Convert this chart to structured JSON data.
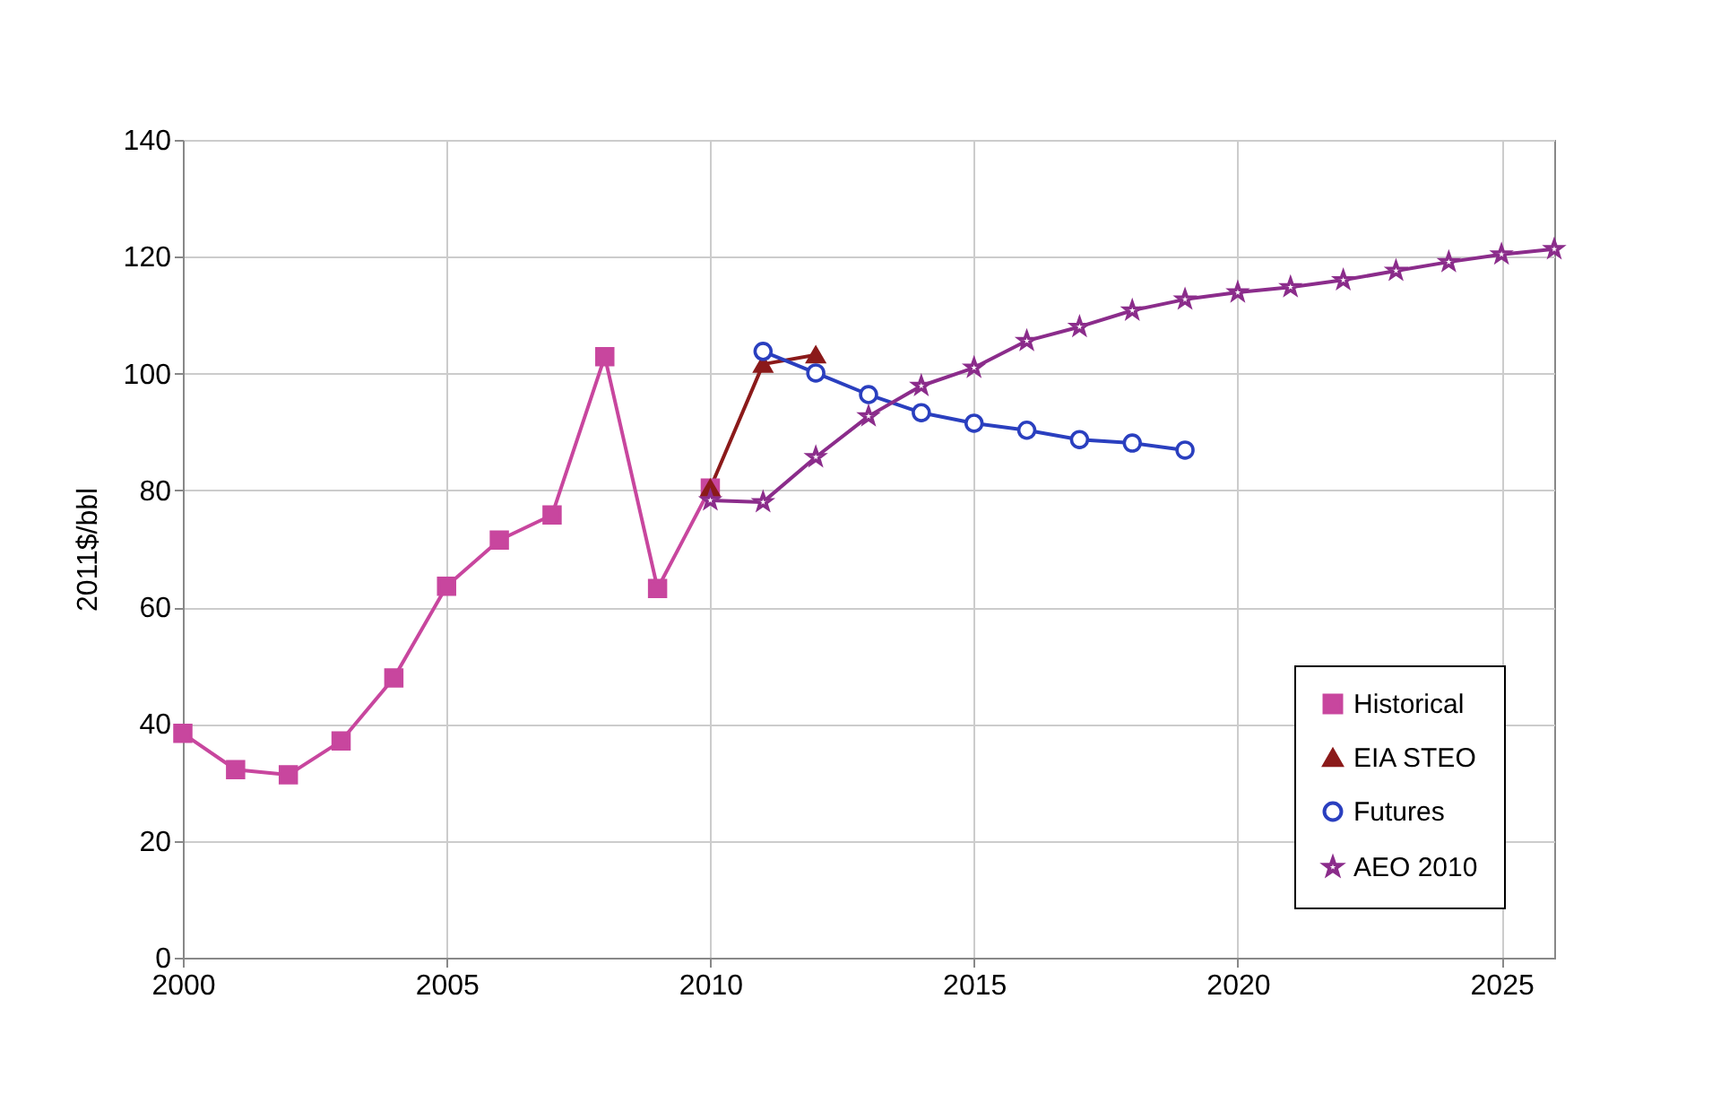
{
  "chart_data": {
    "type": "line",
    "ylabel": "2011$/bbl",
    "xlim": [
      2000,
      2026
    ],
    "xticks": [
      2000,
      2005,
      2010,
      2015,
      2020,
      2025
    ],
    "ylim": [
      0,
      140
    ],
    "yticks": [
      0,
      20,
      40,
      60,
      80,
      100,
      120,
      140
    ],
    "grid": true,
    "legend": "bottom right",
    "series": [
      {
        "name": "Historical",
        "color": "#c8469e",
        "marker": "square",
        "x": [
          2000,
          2001,
          2002,
          2003,
          2004,
          2005,
          2006,
          2007,
          2008,
          2009,
          2010
        ],
        "values": [
          38.4,
          32.2,
          31.3,
          37.1,
          47.9,
          63.6,
          71.5,
          75.8,
          102.9,
          63.2,
          80.4
        ]
      },
      {
        "name": "EIA STEO",
        "color": "#8b1a1a",
        "marker": "triangle",
        "x": [
          2010,
          2011,
          2012
        ],
        "values": [
          80.4,
          101.6,
          103.2
        ]
      },
      {
        "name": "Futures",
        "color": "#2a3fbf",
        "marker": "circle",
        "x": [
          2011,
          2012,
          2013,
          2014,
          2015,
          2016,
          2017,
          2018,
          2019
        ],
        "values": [
          103.8,
          100.1,
          96.4,
          93.3,
          91.5,
          90.3,
          88.7,
          88.1,
          86.9
        ]
      },
      {
        "name": "AEO 2010",
        "color": "#8b2c8b",
        "marker": "star",
        "x": [
          2010,
          2011,
          2012,
          2013,
          2014,
          2015,
          2016,
          2017,
          2018,
          2019,
          2020,
          2021,
          2022,
          2023,
          2024,
          2025,
          2026
        ],
        "values": [
          78.3,
          78.0,
          85.7,
          92.7,
          97.9,
          101.0,
          105.6,
          108.0,
          110.8,
          112.7,
          113.9,
          114.8,
          116.0,
          117.6,
          119.1,
          120.4,
          121.3
        ]
      }
    ]
  }
}
